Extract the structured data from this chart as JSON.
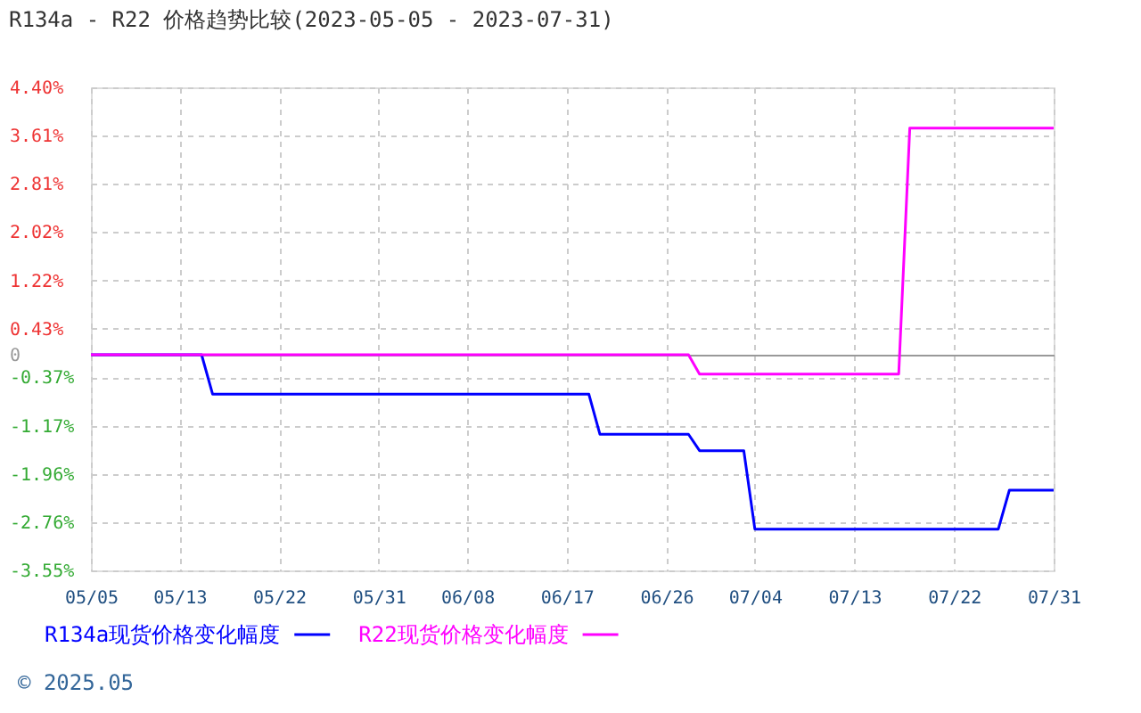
{
  "chart_data": {
    "type": "line",
    "title": "R134a - R22 价格趋势比较(2023-05-05 - 2023-07-31)",
    "xlim": [
      "2023-05-05",
      "2023-07-31"
    ],
    "xticks": [
      {
        "value": "2023-05-05",
        "label": "05/05"
      },
      {
        "value": "2023-05-13",
        "label": "05/13"
      },
      {
        "value": "2023-05-22",
        "label": "05/22"
      },
      {
        "value": "2023-05-31",
        "label": "05/31"
      },
      {
        "value": "2023-06-08",
        "label": "06/08"
      },
      {
        "value": "2023-06-17",
        "label": "06/17"
      },
      {
        "value": "2023-06-26",
        "label": "06/26"
      },
      {
        "value": "2023-07-04",
        "label": "07/04"
      },
      {
        "value": "2023-07-13",
        "label": "07/13"
      },
      {
        "value": "2023-07-22",
        "label": "07/22"
      },
      {
        "value": "2023-07-31",
        "label": "07/31"
      }
    ],
    "ylim": [
      -3.55,
      4.4
    ],
    "yticks": [
      {
        "value": 4.4,
        "label": "4.40%"
      },
      {
        "value": 3.61,
        "label": "3.61%"
      },
      {
        "value": 2.81,
        "label": "2.81%"
      },
      {
        "value": 2.02,
        "label": "2.02%"
      },
      {
        "value": 1.22,
        "label": "1.22%"
      },
      {
        "value": 0.43,
        "label": "0.43%"
      },
      0,
      {
        "value": -0.37,
        "label": "-0.37%"
      },
      {
        "value": -1.17,
        "label": "-1.17%"
      },
      {
        "value": -1.96,
        "label": "-1.96%"
      },
      {
        "value": -2.76,
        "label": "-2.76%"
      },
      {
        "value": -3.55,
        "label": "-3.55%"
      }
    ],
    "grid": true,
    "legend": "bottom",
    "series": [
      {
        "name": "R134a现货价格变化幅度",
        "color": "#0000ff",
        "x": [
          "2023-05-05",
          "2023-05-15",
          "2023-05-16",
          "2023-06-19",
          "2023-06-20",
          "2023-06-28",
          "2023-06-29",
          "2023-07-03",
          "2023-07-04",
          "2023-07-26",
          "2023-07-27",
          "2023-07-31"
        ],
        "values": [
          0,
          0,
          -0.65,
          -0.65,
          -1.31,
          -1.31,
          -1.58,
          -1.58,
          -2.87,
          -2.87,
          -2.23,
          -2.23
        ]
      },
      {
        "name": "R22现货价格变化幅度",
        "color": "#ff00ff",
        "x": [
          "2023-05-05",
          "2023-06-28",
          "2023-06-29",
          "2023-07-17",
          "2023-07-18",
          "2023-07-31"
        ],
        "values": [
          0,
          0,
          -0.32,
          -0.32,
          3.73,
          3.73
        ]
      }
    ],
    "annotations": [
      "© 2025.05"
    ]
  }
}
